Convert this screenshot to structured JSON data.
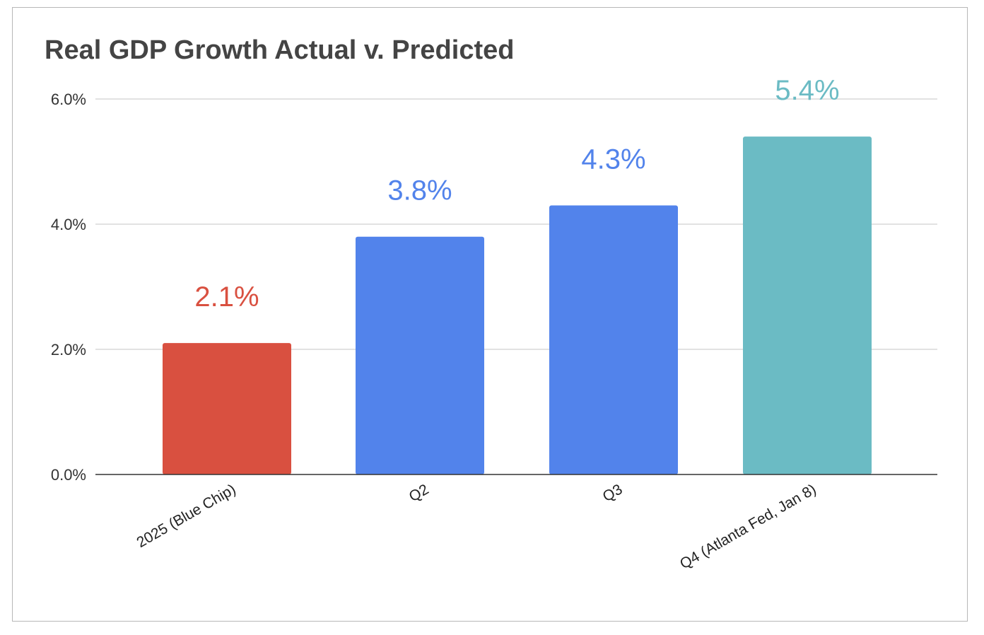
{
  "chart_data": {
    "type": "bar",
    "title": "Real GDP Growth Actual v. Predicted",
    "xlabel": "",
    "ylabel": "",
    "ylim": [
      0,
      6
    ],
    "grid": true,
    "y_ticks": [
      {
        "value": 0,
        "label": "0.0%"
      },
      {
        "value": 2,
        "label": "2.0%"
      },
      {
        "value": 4,
        "label": "4.0%"
      },
      {
        "value": 6,
        "label": "6.0%"
      }
    ],
    "categories": [
      "2025 (Blue Chip)",
      "Q2",
      "Q3",
      "Q4 (Atlanta Fed, Jan 8)"
    ],
    "values": [
      2.1,
      3.8,
      4.3,
      5.4
    ],
    "data_labels": [
      "2.1%",
      "3.8%",
      "4.3%",
      "5.4%"
    ],
    "colors": [
      "#d95040",
      "#5283eb",
      "#5283eb",
      "#6bbbc4"
    ]
  }
}
